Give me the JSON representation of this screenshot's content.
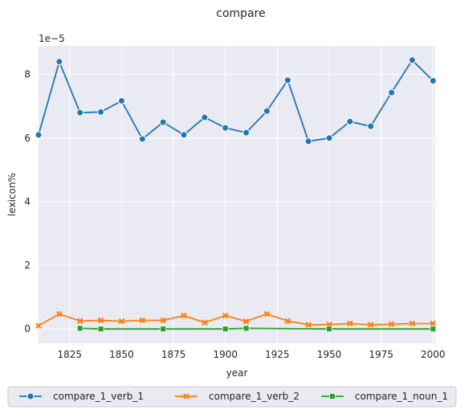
{
  "chart_data": {
    "type": "line",
    "title": "compare",
    "xlabel": "year",
    "ylabel": "lexicon%",
    "y_offset_label": "1e−5",
    "xlim": [
      1810,
      2001
    ],
    "ylim": [
      -0.45,
      8.9
    ],
    "x_ticks": [
      1825,
      1850,
      1875,
      1900,
      1925,
      1950,
      1975,
      2000
    ],
    "y_ticks": [
      0,
      2,
      4,
      6,
      8
    ],
    "grid": true,
    "legend_placement": "bottom",
    "series": [
      {
        "name": "compare_1_verb_1",
        "color": "#1f77b4",
        "marker": "circle",
        "x": [
          1810,
          1820,
          1830,
          1840,
          1850,
          1860,
          1870,
          1880,
          1890,
          1900,
          1910,
          1920,
          1930,
          1940,
          1950,
          1960,
          1970,
          1980,
          1990,
          2000
        ],
        "y": [
          6.1,
          8.4,
          6.8,
          6.82,
          7.17,
          5.97,
          6.5,
          6.1,
          6.65,
          6.32,
          6.17,
          6.85,
          7.82,
          5.9,
          6.0,
          6.52,
          6.37,
          7.43,
          8.45,
          7.8
        ]
      },
      {
        "name": "compare_1_verb_2",
        "color": "#ff7f0e",
        "marker": "x",
        "x": [
          1810,
          1820,
          1830,
          1840,
          1850,
          1860,
          1870,
          1880,
          1890,
          1900,
          1910,
          1920,
          1930,
          1940,
          1950,
          1960,
          1970,
          1980,
          1990,
          2000
        ],
        "y": [
          0.1,
          0.47,
          0.25,
          0.27,
          0.24,
          0.27,
          0.27,
          0.42,
          0.2,
          0.42,
          0.24,
          0.47,
          0.25,
          0.13,
          0.14,
          0.17,
          0.13,
          0.15,
          0.17,
          0.17
        ]
      },
      {
        "name": "compare_1_noun_1",
        "color": "#2ca02c",
        "marker": "square",
        "x": [
          1830,
          1840,
          1870,
          1900,
          1910,
          1950,
          2000
        ],
        "y": [
          0.02,
          0.0,
          0.0,
          0.0,
          0.02,
          0.0,
          0.0
        ]
      }
    ]
  }
}
